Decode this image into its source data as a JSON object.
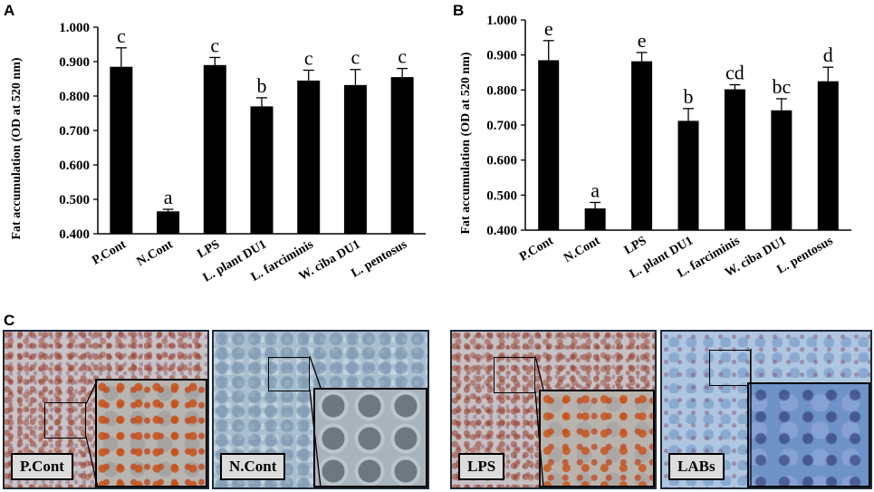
{
  "panels": {
    "a": "A",
    "b": "B",
    "c": "C"
  },
  "chart_data": [
    {
      "type": "bar",
      "panel": "A",
      "ylabel": "Fat accumulation (OD at 520 nm)",
      "ylim": [
        0.4,
        1.0
      ],
      "yticks": [
        "0.400",
        "0.500",
        "0.600",
        "0.700",
        "0.800",
        "0.900",
        "1.000"
      ],
      "categories": [
        "P.Cont",
        "N.Cont",
        "LPS",
        "L. plant DU1",
        "L. farciminis",
        "W. ciba DU1",
        "L. pentosus"
      ],
      "values": [
        0.885,
        0.465,
        0.89,
        0.77,
        0.845,
        0.832,
        0.855
      ],
      "errors": [
        0.055,
        0.006,
        0.022,
        0.025,
        0.03,
        0.045,
        0.025
      ],
      "significance": [
        "c",
        "a",
        "c",
        "b",
        "c",
        "c",
        "c"
      ]
    },
    {
      "type": "bar",
      "panel": "B",
      "ylabel": "Fat accumulation (OD at 520 nm)",
      "ylim": [
        0.4,
        1.0
      ],
      "yticks": [
        "0.400",
        "0.500",
        "0.600",
        "0.700",
        "0.800",
        "0.900",
        "1.000"
      ],
      "categories": [
        "P.Cont",
        "N.Cont",
        "LPS",
        "L. plant DU1",
        "L. farciminis",
        "W. ciba DU1",
        "L. pentosus"
      ],
      "values": [
        0.885,
        0.462,
        0.882,
        0.712,
        0.802,
        0.742,
        0.825
      ],
      "errors": [
        0.056,
        0.017,
        0.025,
        0.035,
        0.013,
        0.033,
        0.04
      ],
      "significance": [
        "e",
        "a",
        "e",
        "b",
        "cd",
        "bc",
        "d"
      ]
    }
  ],
  "images": [
    {
      "label": "P.Cont",
      "tone": "red-dense"
    },
    {
      "label": "N.Cont",
      "tone": "clear"
    },
    {
      "label": "LPS",
      "tone": "red-dense"
    },
    {
      "label": "LABs",
      "tone": "blue-sparse"
    }
  ]
}
